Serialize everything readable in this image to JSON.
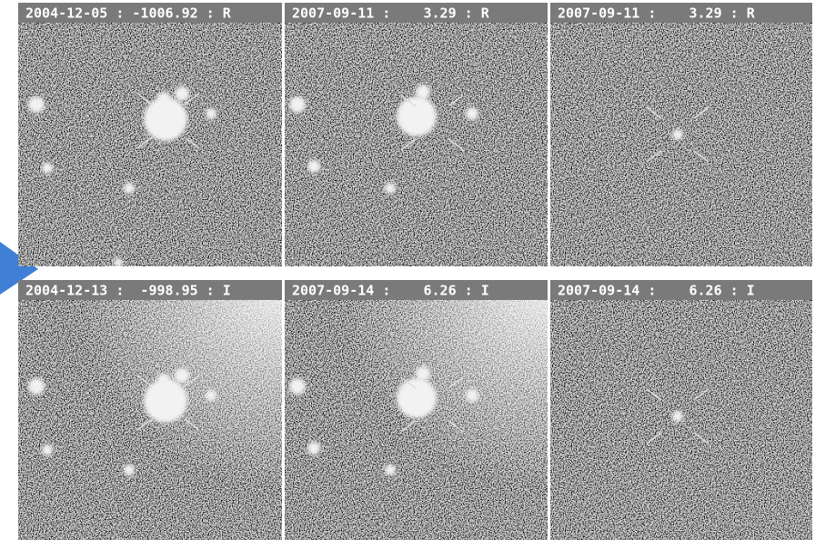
{
  "panels": [
    {
      "label": "2004-12-05 : -1006.92 : R"
    },
    {
      "label": "2007-09-11 :    3.29 : R"
    },
    {
      "label": "2007-09-11 :    3.29 : R"
    },
    {
      "label": "2004-12-13 :  -998.95 : I"
    },
    {
      "label": "2007-09-14 :    6.26 : I"
    },
    {
      "label": "2007-09-14 :    6.26 : I"
    }
  ]
}
